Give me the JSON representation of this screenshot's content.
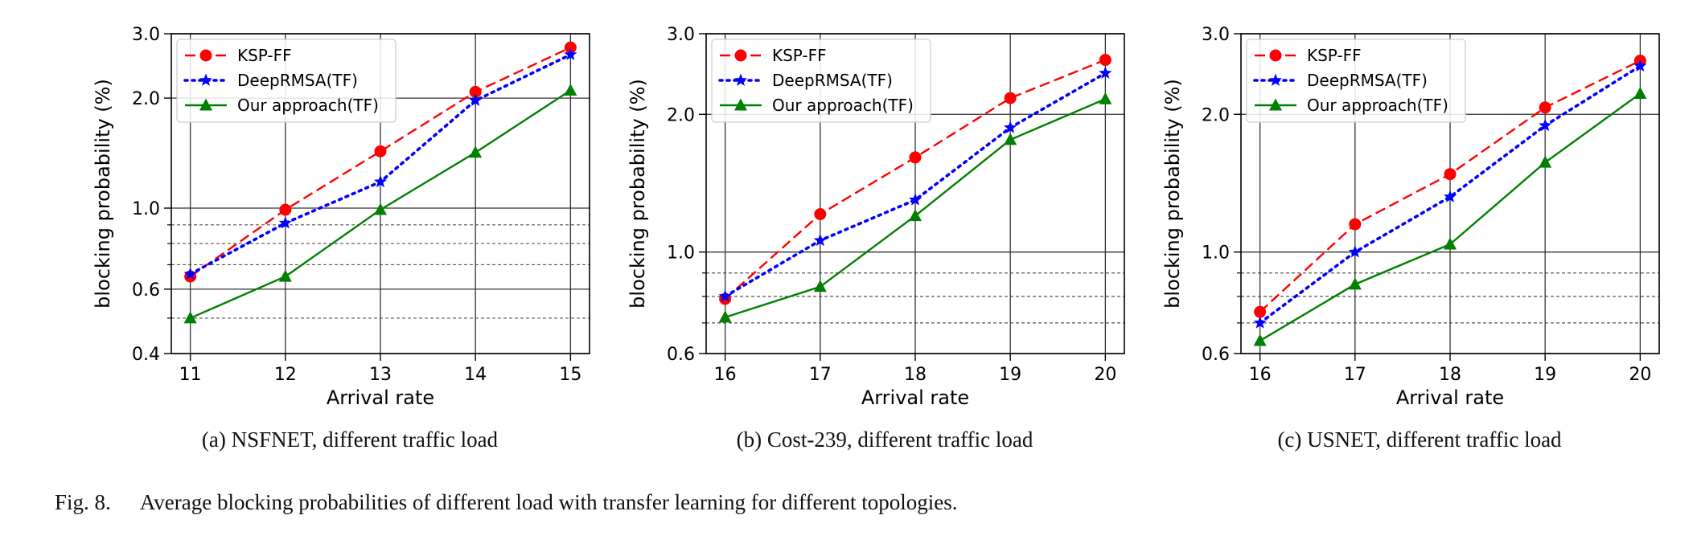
{
  "figure_label": "Fig. 8.",
  "figure_caption": "Average blocking probabilities of different load with transfer learning for different topologies.",
  "colors": {
    "ksp": "#ff0000",
    "deeprmsa": "#0000ff",
    "ours": "#008000"
  },
  "chart_data": [
    {
      "type": "line",
      "caption": "(a) NSFNET, different traffic load",
      "xlabel": "Arrival rate",
      "ylabel": "blocking probability (%)",
      "yscale": "log",
      "x": [
        11,
        12,
        13,
        14,
        15
      ],
      "xlim": [
        10.8,
        15.2
      ],
      "ylim": [
        0.4,
        3.0
      ],
      "major_ticks": [
        0.4,
        0.6,
        1.0,
        2.0,
        3.0
      ],
      "major_tick_labels": [
        "0.4",
        "0.6",
        "1.0",
        "2.0",
        "3.0"
      ],
      "minor_ticks": [
        0.5,
        0.7,
        0.8,
        0.9
      ],
      "grid": true,
      "legend_position": "upper-left",
      "series": [
        {
          "name": "KSP-FF",
          "values": [
            0.65,
            0.99,
            1.43,
            2.08,
            2.75
          ]
        },
        {
          "name": "DeepRMSA(TF)",
          "values": [
            0.66,
            0.91,
            1.18,
            1.97,
            2.63
          ]
        },
        {
          "name": "Our approach(TF)",
          "values": [
            0.5,
            0.65,
            0.99,
            1.42,
            2.1
          ]
        }
      ]
    },
    {
      "type": "line",
      "caption": "(b) Cost-239, different traffic load",
      "xlabel": "Arrival rate",
      "ylabel": "blocking probability (%)",
      "yscale": "log",
      "x": [
        16,
        17,
        18,
        19,
        20
      ],
      "xlim": [
        15.8,
        20.2
      ],
      "ylim": [
        0.6,
        3.0
      ],
      "major_ticks": [
        0.6,
        1.0,
        2.0,
        3.0
      ],
      "major_tick_labels": [
        "0.6",
        "1.0",
        "2.0",
        "3.0"
      ],
      "minor_ticks": [
        0.7,
        0.8,
        0.9
      ],
      "grid": true,
      "legend_position": "upper-left",
      "series": [
        {
          "name": "KSP-FF",
          "values": [
            0.79,
            1.21,
            1.61,
            2.17,
            2.63
          ]
        },
        {
          "name": "DeepRMSA(TF)",
          "values": [
            0.8,
            1.06,
            1.3,
            1.87,
            2.46
          ]
        },
        {
          "name": "Our approach(TF)",
          "values": [
            0.72,
            0.84,
            1.2,
            1.76,
            2.16
          ]
        }
      ]
    },
    {
      "type": "line",
      "caption": "(c) USNET, different traffic load",
      "xlabel": "Arrival rate",
      "ylabel": "blocking probability (%)",
      "yscale": "log",
      "x": [
        16,
        17,
        18,
        19,
        20
      ],
      "xlim": [
        15.8,
        20.2
      ],
      "ylim": [
        0.6,
        3.0
      ],
      "major_ticks": [
        0.6,
        1.0,
        2.0,
        3.0
      ],
      "major_tick_labels": [
        "0.6",
        "1.0",
        "2.0",
        "3.0"
      ],
      "minor_ticks": [
        0.7,
        0.8,
        0.9
      ],
      "grid": true,
      "legend_position": "upper-left",
      "series": [
        {
          "name": "KSP-FF",
          "values": [
            0.74,
            1.15,
            1.48,
            2.07,
            2.62
          ]
        },
        {
          "name": "DeepRMSA(TF)",
          "values": [
            0.7,
            1.0,
            1.32,
            1.89,
            2.55
          ]
        },
        {
          "name": "Our approach(TF)",
          "values": [
            0.64,
            0.85,
            1.04,
            1.57,
            2.22
          ]
        }
      ]
    }
  ]
}
